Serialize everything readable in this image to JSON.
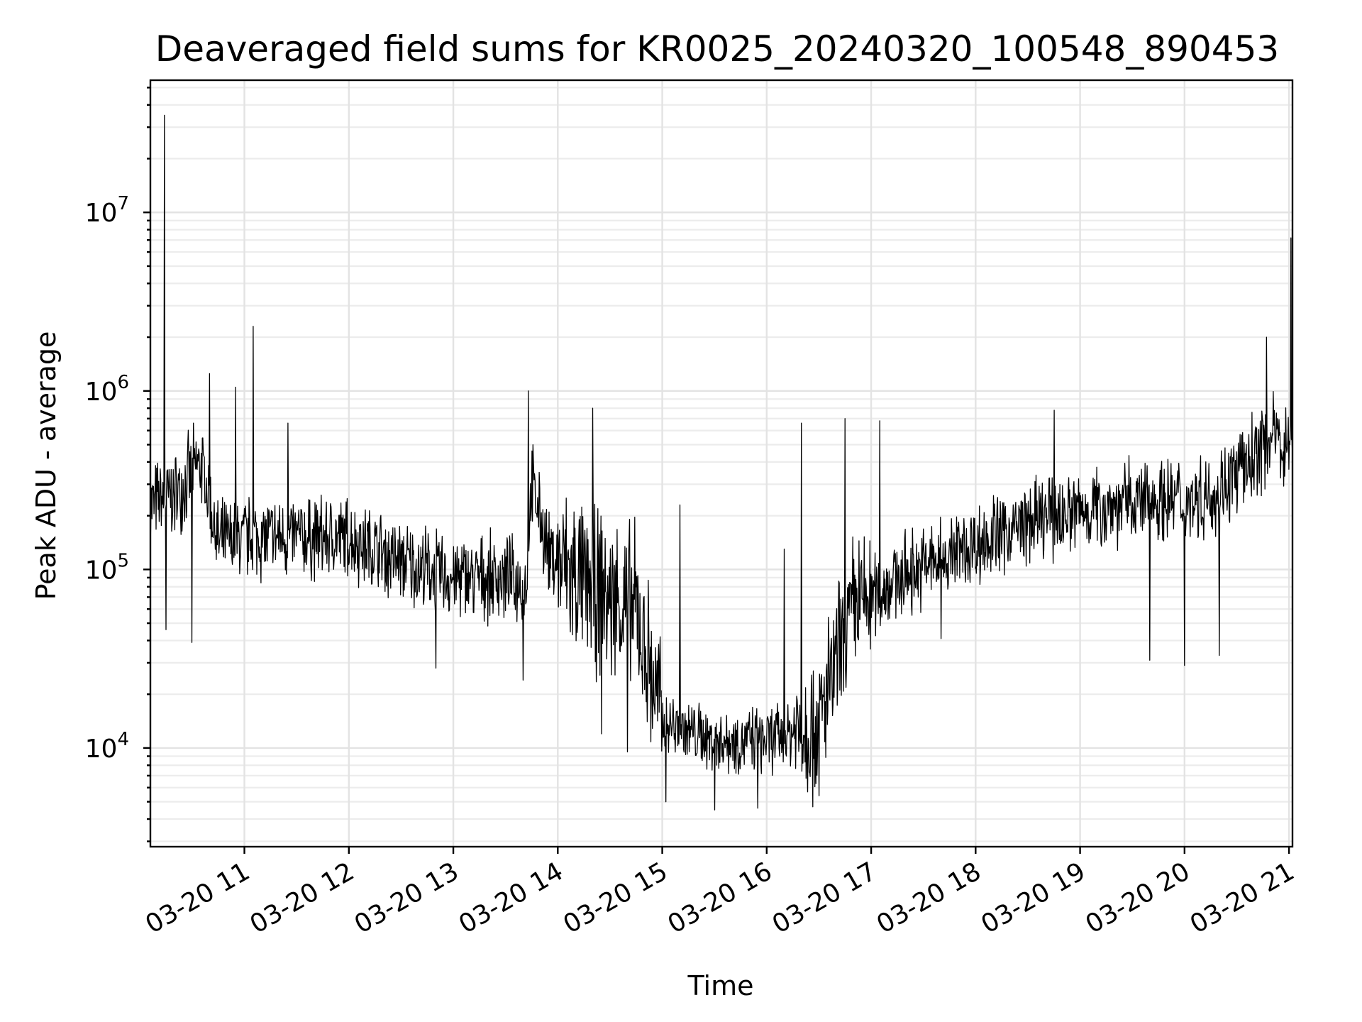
{
  "chart_data": {
    "type": "line",
    "title": "Deaveraged field sums for KR0025_20240320_100548_890453",
    "xlabel": "Time",
    "ylabel": "Peak ADU - average",
    "yscale": "log",
    "ylim": [
      2800,
      55000000
    ],
    "xlim": [
      "03-20 10:06",
      "03-20 21:02"
    ],
    "x_ticks": [
      "03-20 11",
      "03-20 12",
      "03-20 13",
      "03-20 14",
      "03-20 15",
      "03-20 16",
      "03-20 17",
      "03-20 18",
      "03-20 19",
      "03-20 20",
      "03-20 21"
    ],
    "y_ticks": [
      {
        "base": "10",
        "exp": "4",
        "value": 10000
      },
      {
        "base": "10",
        "exp": "5",
        "value": 100000
      },
      {
        "base": "10",
        "exp": "6",
        "value": 1000000
      },
      {
        "base": "10",
        "exp": "7",
        "value": 10000000
      }
    ],
    "grid": true,
    "line_color": "#000000",
    "series": [
      {
        "trend_points": [
          {
            "x": "03-20 10:06",
            "y": 230000
          },
          {
            "x": "03-20 10:20",
            "y": 260000
          },
          {
            "x": "03-20 10:35",
            "y": 400000
          },
          {
            "x": "03-20 10:45",
            "y": 140000
          },
          {
            "x": "03-20 11:00",
            "y": 150000
          },
          {
            "x": "03-20 11:30",
            "y": 150000
          },
          {
            "x": "03-20 12:00",
            "y": 150000
          },
          {
            "x": "03-20 12:30",
            "y": 110000
          },
          {
            "x": "03-20 13:00",
            "y": 90000
          },
          {
            "x": "03-20 13:30",
            "y": 90000
          },
          {
            "x": "03-20 13:42",
            "y": 80000
          },
          {
            "x": "03-20 13:45",
            "y": 300000
          },
          {
            "x": "03-20 13:55",
            "y": 120000
          },
          {
            "x": "03-20 14:15",
            "y": 80000
          },
          {
            "x": "03-20 14:45",
            "y": 60000
          },
          {
            "x": "03-20 15:00",
            "y": 14000
          },
          {
            "x": "03-20 15:30",
            "y": 11000
          },
          {
            "x": "03-20 16:00",
            "y": 11000
          },
          {
            "x": "03-20 16:30",
            "y": 14000
          },
          {
            "x": "03-20 16:50",
            "y": 60000
          },
          {
            "x": "03-20 17:15",
            "y": 90000
          },
          {
            "x": "03-20 17:45",
            "y": 120000
          },
          {
            "x": "03-20 18:15",
            "y": 160000
          },
          {
            "x": "03-20 18:45",
            "y": 200000
          },
          {
            "x": "03-20 19:15",
            "y": 230000
          },
          {
            "x": "03-20 19:45",
            "y": 250000
          },
          {
            "x": "03-20 20:15",
            "y": 260000
          },
          {
            "x": "03-20 20:35",
            "y": 380000
          },
          {
            "x": "03-20 20:50",
            "y": 550000
          },
          {
            "x": "03-20 21:02",
            "y": 500000
          }
        ],
        "spikes": [
          {
            "x": "03-20 10:14",
            "y": 35000000
          },
          {
            "x": "03-20 10:15",
            "y": 46000
          },
          {
            "x": "03-20 10:30",
            "y": 39000
          },
          {
            "x": "03-20 10:40",
            "y": 1250000
          },
          {
            "x": "03-20 10:55",
            "y": 1050000
          },
          {
            "x": "03-20 11:05",
            "y": 2300000
          },
          {
            "x": "03-20 11:25",
            "y": 660000
          },
          {
            "x": "03-20 12:50",
            "y": 28000
          },
          {
            "x": "03-20 13:40",
            "y": 24000
          },
          {
            "x": "03-20 13:43",
            "y": 1000000
          },
          {
            "x": "03-20 14:20",
            "y": 800000
          },
          {
            "x": "03-20 14:25",
            "y": 12000
          },
          {
            "x": "03-20 14:40",
            "y": 9500
          },
          {
            "x": "03-20 15:02",
            "y": 5000
          },
          {
            "x": "03-20 15:10",
            "y": 230000
          },
          {
            "x": "03-20 15:30",
            "y": 4500
          },
          {
            "x": "03-20 15:55",
            "y": 4600
          },
          {
            "x": "03-20 16:10",
            "y": 130000
          },
          {
            "x": "03-20 16:20",
            "y": 660000
          },
          {
            "x": "03-20 16:30",
            "y": 5400
          },
          {
            "x": "03-20 16:45",
            "y": 700000
          },
          {
            "x": "03-20 17:05",
            "y": 680000
          },
          {
            "x": "03-20 17:40",
            "y": 41000
          },
          {
            "x": "03-20 18:45",
            "y": 780000
          },
          {
            "x": "03-20 19:40",
            "y": 31000
          },
          {
            "x": "03-20 20:00",
            "y": 29000
          },
          {
            "x": "03-20 20:20",
            "y": 33000
          },
          {
            "x": "03-20 20:47",
            "y": 2000000
          },
          {
            "x": "03-20 21:01",
            "y": 7200000
          }
        ]
      }
    ]
  }
}
